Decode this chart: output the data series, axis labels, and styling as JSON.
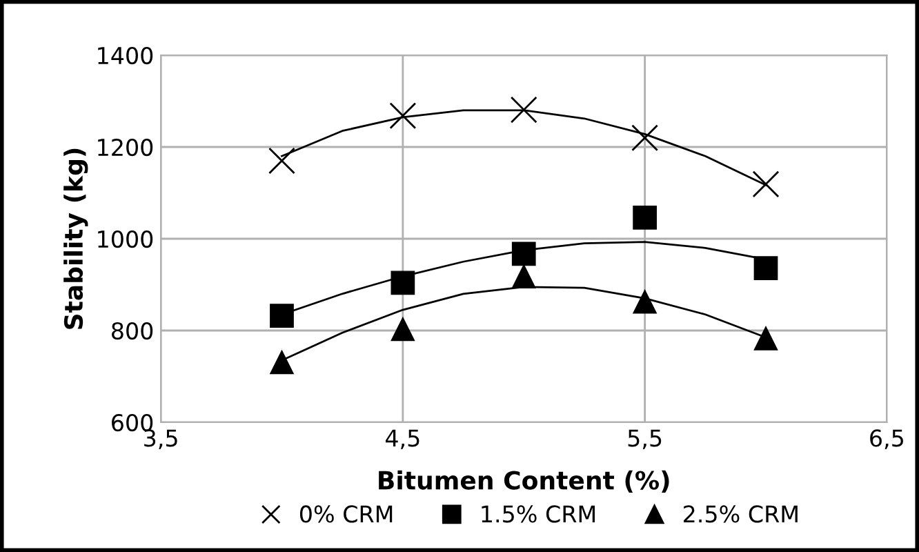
{
  "chart_data": {
    "type": "scatter",
    "xlabel": "Bitumen Content (%)",
    "ylabel": "Stability (kg)",
    "xlim": [
      3.5,
      6.5
    ],
    "xticks": [
      {
        "value": 3.5,
        "label": "3,5"
      },
      {
        "value": 4.5,
        "label": "4,5"
      },
      {
        "value": 5.5,
        "label": "5,5"
      },
      {
        "value": 6.5,
        "label": "6,5"
      }
    ],
    "ylim": [
      600,
      1400
    ],
    "yticks": [
      600,
      800,
      1000,
      1200,
      1400
    ],
    "grid": true,
    "legend": "bottom",
    "series": [
      {
        "name": "0% CRM",
        "color": "#000000",
        "marker": "cross",
        "x": [
          4.0,
          4.5,
          5.0,
          5.5,
          6.0
        ],
        "values": [
          1170,
          1268,
          1281,
          1220,
          1119
        ]
      },
      {
        "name": "1.5% CRM",
        "color": "#000000",
        "marker": "square",
        "x": [
          4.0,
          4.5,
          5.0,
          5.5,
          6.0
        ],
        "values": [
          832,
          904,
          967,
          1046,
          936
        ]
      },
      {
        "name": "2.5% CRM",
        "color": "#000000",
        "marker": "triangle",
        "x": [
          4.0,
          4.5,
          5.0,
          5.5,
          6.0
        ],
        "values": [
          731,
          803,
          918,
          863,
          783
        ]
      },
      {
        "type": "line",
        "color": "#000000",
        "marker": "none",
        "x": [
          4.0,
          4.25,
          4.5,
          4.75,
          5.0,
          5.25,
          5.5,
          5.75,
          6.0
        ],
        "values": [
          1180,
          1235,
          1265,
          1280,
          1280,
          1262,
          1228,
          1180,
          1117
        ]
      },
      {
        "type": "line",
        "color": "#000000",
        "marker": "none",
        "x": [
          4.0,
          4.25,
          4.5,
          4.75,
          5.0,
          5.25,
          5.5,
          5.75,
          6.0
        ],
        "values": [
          835,
          880,
          918,
          950,
          975,
          990,
          993,
          980,
          955
        ]
      },
      {
        "type": "line",
        "color": "#000000",
        "marker": "none",
        "x": [
          4.0,
          4.25,
          4.5,
          4.75,
          5.0,
          5.25,
          5.5,
          5.75,
          6.0
        ],
        "values": [
          735,
          795,
          845,
          880,
          895,
          893,
          870,
          835,
          785
        ]
      }
    ]
  }
}
